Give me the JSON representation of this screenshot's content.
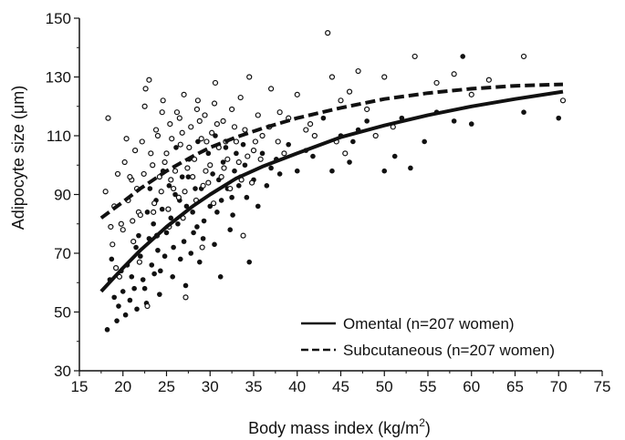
{
  "chart_data": {
    "type": "scatter",
    "xlabel": "Body mass index (kg/m",
    "xlabel_sup": "2",
    "xlabel_close": ")",
    "ylabel": "Adipocyte size (μm)",
    "xlim": [
      15,
      75
    ],
    "ylim": [
      30,
      150
    ],
    "xticks": [
      15,
      20,
      25,
      30,
      35,
      40,
      45,
      50,
      55,
      60,
      65,
      70,
      75
    ],
    "yticks": [
      30,
      50,
      70,
      90,
      110,
      130,
      150
    ],
    "legend_position": "bottom-right",
    "grid": false,
    "series": [
      {
        "name": "Omental (n=207 women)",
        "marker": "filled-circle",
        "line_style": "solid",
        "fit_curve": [
          [
            17.5,
            57
          ],
          [
            20,
            65
          ],
          [
            22,
            71
          ],
          [
            25,
            79
          ],
          [
            28,
            86
          ],
          [
            30,
            90
          ],
          [
            33,
            95.5
          ],
          [
            36,
            99.5
          ],
          [
            40,
            104
          ],
          [
            45,
            109.5
          ],
          [
            50,
            113.5
          ],
          [
            55,
            117
          ],
          [
            60,
            120
          ],
          [
            65,
            122.5
          ],
          [
            70.5,
            125
          ]
        ],
        "points": [
          [
            18.2,
            44
          ],
          [
            18.5,
            61
          ],
          [
            19,
            55
          ],
          [
            19.5,
            52
          ],
          [
            20,
            57
          ],
          [
            20.5,
            66
          ],
          [
            21,
            62
          ],
          [
            21.5,
            72
          ],
          [
            22,
            69
          ],
          [
            22.5,
            58
          ],
          [
            23,
            75
          ],
          [
            23.5,
            80
          ],
          [
            24,
            71
          ],
          [
            24.5,
            85
          ],
          [
            25,
            77
          ],
          [
            25.5,
            82
          ],
          [
            26,
            90
          ],
          [
            26.5,
            88
          ],
          [
            27,
            74
          ],
          [
            27.5,
            96
          ],
          [
            28,
            84
          ],
          [
            28.5,
            79
          ],
          [
            29,
            92
          ],
          [
            29.5,
            98
          ],
          [
            30,
            86
          ],
          [
            30.5,
            73
          ],
          [
            31,
            95
          ],
          [
            31.5,
            101
          ],
          [
            32,
            92
          ],
          [
            32.5,
            89
          ],
          [
            33,
            104
          ],
          [
            33.5,
            96
          ],
          [
            34,
            100
          ],
          [
            34.5,
            67
          ],
          [
            35,
            95
          ],
          [
            36,
            104
          ],
          [
            37,
            99
          ],
          [
            38,
            97
          ],
          [
            39,
            107
          ],
          [
            40,
            98
          ],
          [
            41,
            105
          ],
          [
            42,
            110
          ],
          [
            43,
            116
          ],
          [
            44,
            98
          ],
          [
            45,
            110
          ],
          [
            46,
            101
          ],
          [
            47,
            112
          ],
          [
            48,
            115
          ],
          [
            50,
            98
          ],
          [
            52,
            116
          ],
          [
            53,
            99
          ],
          [
            56,
            118
          ],
          [
            58,
            115
          ],
          [
            59,
            137
          ],
          [
            60,
            114
          ],
          [
            66,
            118
          ],
          [
            70,
            116
          ],
          [
            18.7,
            68
          ],
          [
            19.8,
            64
          ],
          [
            20.3,
            49
          ],
          [
            21.3,
            58
          ],
          [
            21.8,
            76
          ],
          [
            22.3,
            61
          ],
          [
            22.8,
            84
          ],
          [
            23.3,
            66
          ],
          [
            23.8,
            88
          ],
          [
            24.3,
            64
          ],
          [
            24.8,
            69
          ],
          [
            25.3,
            93
          ],
          [
            25.8,
            72
          ],
          [
            26.3,
            80
          ],
          [
            26.8,
            96
          ],
          [
            27.3,
            86
          ],
          [
            27.8,
            70
          ],
          [
            28.3,
            92
          ],
          [
            28.8,
            67
          ],
          [
            29.3,
            81
          ],
          [
            29.8,
            104
          ],
          [
            30.3,
            97
          ],
          [
            30.8,
            84
          ],
          [
            31.3,
            88
          ],
          [
            31.8,
            106
          ],
          [
            32.3,
            78
          ],
          [
            32.8,
            98
          ],
          [
            33.3,
            93
          ],
          [
            33.8,
            107
          ],
          [
            35.5,
            86
          ],
          [
            36.5,
            93
          ],
          [
            20.8,
            54
          ],
          [
            22.7,
            53
          ],
          [
            24.2,
            56
          ],
          [
            25.7,
            62
          ],
          [
            27.2,
            59
          ],
          [
            29.2,
            75
          ],
          [
            31.2,
            62
          ],
          [
            23.1,
            92
          ],
          [
            24.6,
            98
          ],
          [
            26.1,
            106
          ],
          [
            27.6,
            102
          ],
          [
            28.6,
            108
          ],
          [
            30.6,
            110
          ],
          [
            19.3,
            47
          ],
          [
            21.6,
            51
          ],
          [
            23.6,
            63
          ],
          [
            26.6,
            68
          ],
          [
            28.1,
            77
          ],
          [
            32.6,
            83
          ],
          [
            34.2,
            89
          ],
          [
            37.6,
            102
          ],
          [
            41.8,
            103
          ],
          [
            46.4,
            108
          ],
          [
            51.2,
            103
          ],
          [
            54.6,
            108
          ]
        ]
      },
      {
        "name": "Subcutaneous (n=207 women)",
        "marker": "open-circle",
        "line_style": "dashed",
        "fit_curve": [
          [
            17.5,
            82
          ],
          [
            20,
            87.5
          ],
          [
            22,
            92
          ],
          [
            25,
            98
          ],
          [
            28,
            103
          ],
          [
            30,
            106
          ],
          [
            33,
            109.5
          ],
          [
            36,
            112.5
          ],
          [
            40,
            116
          ],
          [
            45,
            119.5
          ],
          [
            50,
            122.5
          ],
          [
            55,
            124.5
          ],
          [
            60,
            126
          ],
          [
            65,
            127
          ],
          [
            70.5,
            127.5
          ]
        ],
        "points": [
          [
            18,
            91
          ],
          [
            18.3,
            116
          ],
          [
            18.6,
            79
          ],
          [
            19,
            86
          ],
          [
            19.4,
            97
          ],
          [
            19.8,
            80
          ],
          [
            20.2,
            101
          ],
          [
            20.6,
            88
          ],
          [
            21,
            95
          ],
          [
            21.4,
            105
          ],
          [
            21.8,
            84
          ],
          [
            22.2,
            108
          ],
          [
            22.6,
            126
          ],
          [
            23,
            129
          ],
          [
            23.4,
            100
          ],
          [
            23.8,
            112
          ],
          [
            24.2,
            96
          ],
          [
            24.6,
            122
          ],
          [
            25,
            104
          ],
          [
            25.4,
            114
          ],
          [
            25.8,
            92
          ],
          [
            26.2,
            118
          ],
          [
            26.6,
            107
          ],
          [
            27,
            124
          ],
          [
            27.4,
            99
          ],
          [
            27.8,
            113
          ],
          [
            28.2,
            102
          ],
          [
            28.6,
            122
          ],
          [
            29,
            109
          ],
          [
            29.4,
            117
          ],
          [
            29.8,
            94
          ],
          [
            30.2,
            111
          ],
          [
            30.6,
            128
          ],
          [
            31,
            106
          ],
          [
            31.5,
            115
          ],
          [
            32,
            102
          ],
          [
            32.5,
            119
          ],
          [
            33,
            108
          ],
          [
            33.5,
            123
          ],
          [
            34,
            112
          ],
          [
            34.5,
            130
          ],
          [
            35,
            105
          ],
          [
            35.5,
            117
          ],
          [
            36,
            110
          ],
          [
            37,
            126
          ],
          [
            38,
            118
          ],
          [
            39,
            116
          ],
          [
            40,
            124
          ],
          [
            41,
            112
          ],
          [
            42,
            110
          ],
          [
            43.5,
            145
          ],
          [
            44,
            130
          ],
          [
            45,
            122
          ],
          [
            45.5,
            104
          ],
          [
            46,
            125
          ],
          [
            47,
            132
          ],
          [
            48,
            119
          ],
          [
            50,
            130
          ],
          [
            51,
            113
          ],
          [
            53.5,
            137
          ],
          [
            56,
            128
          ],
          [
            58,
            131
          ],
          [
            60,
            124
          ],
          [
            62,
            129
          ],
          [
            66,
            137
          ],
          [
            70.5,
            122
          ],
          [
            18.8,
            73
          ],
          [
            19.2,
            65
          ],
          [
            20,
            78
          ],
          [
            20.8,
            96
          ],
          [
            21.2,
            74
          ],
          [
            21.6,
            92
          ],
          [
            22,
            83
          ],
          [
            22.4,
            97
          ],
          [
            22.8,
            52
          ],
          [
            23.2,
            104
          ],
          [
            23.6,
            87
          ],
          [
            24,
            110
          ],
          [
            24.4,
            91
          ],
          [
            24.8,
            101
          ],
          [
            25.2,
            85
          ],
          [
            25.6,
            109
          ],
          [
            26,
            98
          ],
          [
            26.4,
            89
          ],
          [
            26.8,
            111
          ],
          [
            27.2,
            55
          ],
          [
            27.6,
            106
          ],
          [
            28,
            96
          ],
          [
            28.4,
            88
          ],
          [
            28.8,
            115
          ],
          [
            29.2,
            93
          ],
          [
            29.6,
            108
          ],
          [
            30,
            100
          ],
          [
            30.4,
            87
          ],
          [
            30.8,
            114
          ],
          [
            31.3,
            96
          ],
          [
            31.8,
            108
          ],
          [
            32.3,
            92
          ],
          [
            32.8,
            113
          ],
          [
            33.3,
            101
          ],
          [
            33.8,
            76
          ],
          [
            34.3,
            103
          ],
          [
            34.8,
            94
          ],
          [
            35.8,
            102
          ],
          [
            36.8,
            113
          ],
          [
            37.8,
            108
          ],
          [
            19.6,
            62
          ],
          [
            21.9,
            67
          ],
          [
            23.9,
            76
          ],
          [
            25.3,
            79
          ],
          [
            26.9,
            82
          ],
          [
            29.1,
            72
          ],
          [
            20.4,
            109
          ],
          [
            22.5,
            120
          ],
          [
            24.5,
            118
          ],
          [
            26.5,
            116
          ],
          [
            28.5,
            119
          ],
          [
            30.5,
            121
          ],
          [
            21.1,
            81
          ],
          [
            23.5,
            84
          ],
          [
            25.5,
            95
          ],
          [
            27.1,
            91
          ],
          [
            29.5,
            98
          ],
          [
            31.6,
            99
          ],
          [
            33.6,
            95
          ],
          [
            35.2,
            108
          ],
          [
            38.5,
            104
          ],
          [
            41.5,
            114
          ],
          [
            44.5,
            108
          ],
          [
            49,
            110
          ]
        ]
      }
    ]
  }
}
